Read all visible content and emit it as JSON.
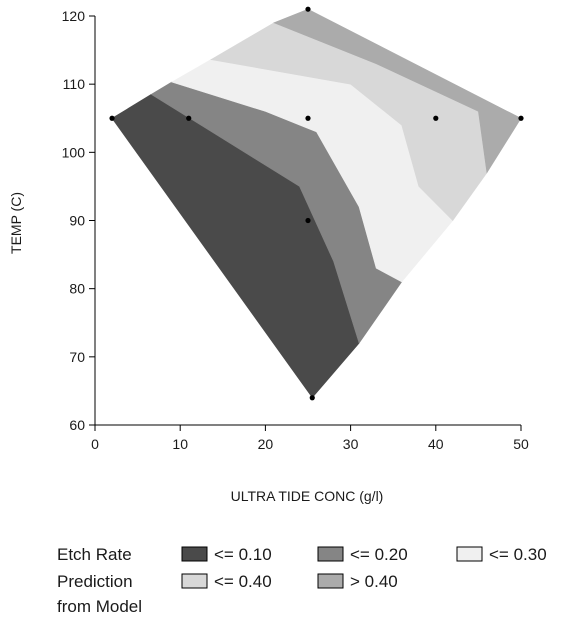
{
  "chart_data": {
    "type": "contour",
    "xlabel": "ULTRA TIDE CONC (g/l)",
    "ylabel": "TEMP (C)",
    "xlim": [
      0,
      50
    ],
    "ylim": [
      60,
      120
    ],
    "x_ticks": [
      "0",
      "10",
      "20",
      "30",
      "40",
      "50"
    ],
    "y_ticks": [
      "60",
      "70",
      "80",
      "90",
      "100",
      "110",
      "120"
    ],
    "design_points": [
      {
        "x": 2,
        "y": 105
      },
      {
        "x": 11,
        "y": 105
      },
      {
        "x": 25,
        "y": 105
      },
      {
        "x": 40,
        "y": 105
      },
      {
        "x": 50,
        "y": 105
      },
      {
        "x": 25,
        "y": 121
      },
      {
        "x": 25,
        "y": 90
      },
      {
        "x": 25.5,
        "y": 64
      }
    ],
    "regions": [
      {
        "label": "<= 0.10",
        "color": "#4a4a4a",
        "polygon": [
          [
            2,
            105
          ],
          [
            6.6,
            108.5
          ],
          [
            15,
            102
          ],
          [
            24,
            95
          ],
          [
            28,
            84
          ],
          [
            31,
            72
          ],
          [
            25.5,
            64
          ]
        ]
      },
      {
        "label": "<= 0.20",
        "color": "#858585",
        "polygon": [
          [
            6.6,
            108.5
          ],
          [
            9,
            110.3
          ],
          [
            20,
            106
          ],
          [
            26,
            103
          ],
          [
            31,
            92
          ],
          [
            33,
            83
          ],
          [
            36,
            81
          ],
          [
            31,
            72
          ],
          [
            28,
            84
          ],
          [
            24,
            95
          ],
          [
            15,
            102
          ]
        ]
      },
      {
        "label": "<= 0.30",
        "color": "#f0f0f0",
        "polygon": [
          [
            9,
            110.3
          ],
          [
            13.6,
            113.6
          ],
          [
            30,
            110
          ],
          [
            36,
            104
          ],
          [
            38,
            95
          ],
          [
            42,
            90
          ],
          [
            36,
            81
          ],
          [
            33,
            83
          ],
          [
            31,
            92
          ],
          [
            26,
            103
          ],
          [
            20,
            106
          ]
        ]
      },
      {
        "label": "<= 0.40",
        "color": "#d8d8d8",
        "polygon": [
          [
            13.6,
            113.6
          ],
          [
            21,
            119
          ],
          [
            33,
            113
          ],
          [
            45,
            106
          ],
          [
            46,
            97
          ],
          [
            42,
            90
          ],
          [
            38,
            95
          ],
          [
            36,
            104
          ],
          [
            30,
            110
          ]
        ]
      },
      {
        "label": "> 0.40",
        "color": "#ababab",
        "polygon": [
          [
            21,
            119
          ],
          [
            25,
            121
          ],
          [
            50,
            105
          ],
          [
            46,
            97
          ],
          [
            45,
            106
          ],
          [
            33,
            113
          ]
        ]
      }
    ],
    "legend": {
      "title_lines": [
        "Etch Rate",
        "Prediction",
        "from Model"
      ],
      "items": [
        {
          "label": "<=  0.10",
          "color": "#4a4a4a"
        },
        {
          "label": "<=  0.20",
          "color": "#858585"
        },
        {
          "label": "<=  0.30",
          "color": "#f0f0f0"
        },
        {
          "label": "<=  0.40",
          "color": "#d8d8d8"
        },
        {
          "label": "> 0.40",
          "color": "#ababab"
        }
      ]
    }
  }
}
